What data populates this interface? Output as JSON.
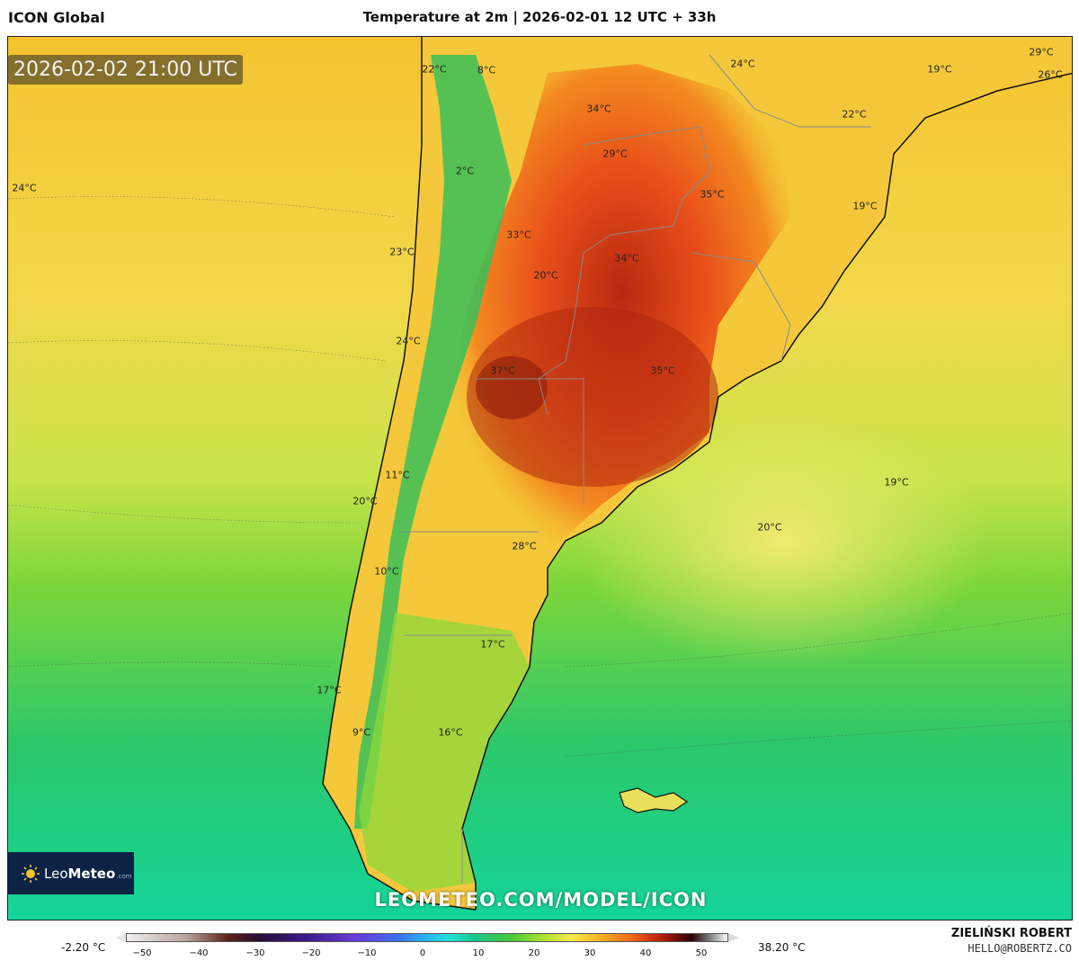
{
  "header": {
    "model": "ICON Global",
    "title": "Temperature at 2m | 2026-02-01 12 UTC + 33h"
  },
  "map": {
    "valid_time": "2026-02-02 21:00 UTC",
    "watermark": "LEOMETEO.COM/MODEL/ICON",
    "labels": [
      {
        "text": "22°C"
      },
      {
        "text": "8°C"
      },
      {
        "text": "24°C"
      },
      {
        "text": "19°C"
      },
      {
        "text": "29°C"
      },
      {
        "text": "26°C"
      },
      {
        "text": "34°C"
      },
      {
        "text": "22°C"
      },
      {
        "text": "29°C"
      },
      {
        "text": "2°C"
      },
      {
        "text": "24°C"
      },
      {
        "text": "35°C"
      },
      {
        "text": "19°C"
      },
      {
        "text": "33°C"
      },
      {
        "text": "23°C"
      },
      {
        "text": "34°C"
      },
      {
        "text": "20°C"
      },
      {
        "text": "24°C"
      },
      {
        "text": "37°C"
      },
      {
        "text": "35°C"
      },
      {
        "text": "11°C"
      },
      {
        "text": "20°C"
      },
      {
        "text": "19°C"
      },
      {
        "text": "20°C"
      },
      {
        "text": "28°C"
      },
      {
        "text": "10°C"
      },
      {
        "text": "17°C"
      },
      {
        "text": "17°C"
      },
      {
        "text": "9°C"
      },
      {
        "text": "16°C"
      }
    ]
  },
  "logo": {
    "brand_light": "Leo",
    "brand_bold": "Meteo",
    "suffix": ".com"
  },
  "legend": {
    "unit": "°C",
    "min_label": "-2.20 °C",
    "max_label": "38.20 °C",
    "ticks": [
      "−50",
      "−40",
      "−30",
      "−20",
      "−10",
      "0",
      "10",
      "20",
      "30",
      "40",
      "50"
    ]
  },
  "credits": {
    "author": "ZIELIŃSKI ROBERT",
    "email": "HELLO@ROBERTZ.CO"
  }
}
